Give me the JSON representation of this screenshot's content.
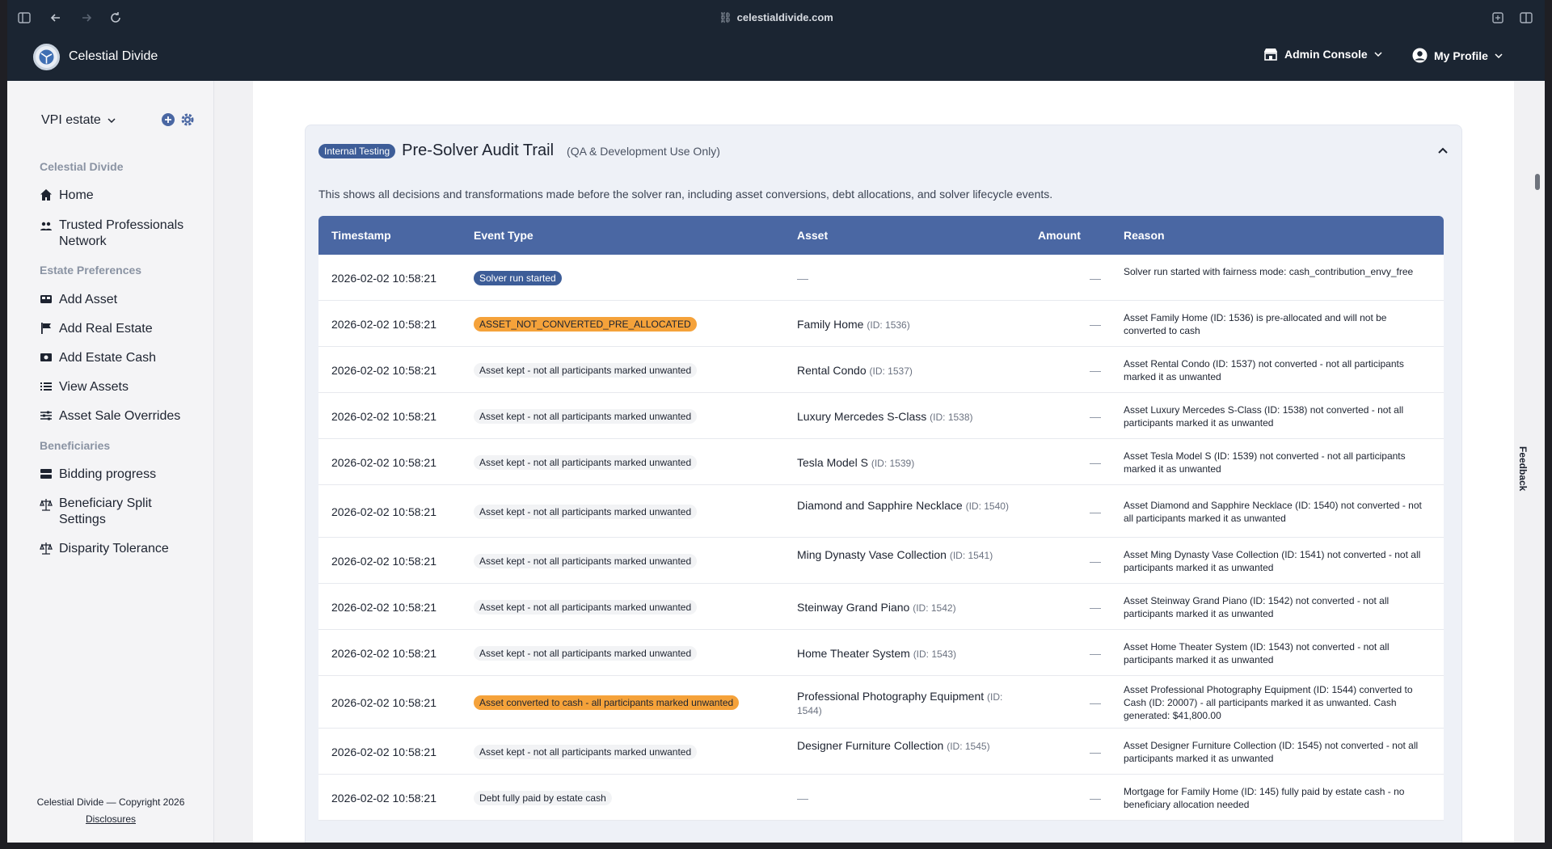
{
  "browser": {
    "url": "celestialdivide.com"
  },
  "header": {
    "brand": "Celestial Divide",
    "admin_console": "Admin Console",
    "my_profile": "My Profile"
  },
  "sidebar": {
    "estate": "VPI estate",
    "sections": [
      {
        "label": "Celestial Divide"
      },
      {
        "label": "Estate Preferences"
      },
      {
        "label": "Beneficiaries"
      }
    ],
    "items": [
      {
        "label": "Home"
      },
      {
        "label": "Trusted Professionals Network"
      },
      {
        "label": "Add Asset"
      },
      {
        "label": "Add Real Estate"
      },
      {
        "label": "Add Estate Cash"
      },
      {
        "label": "View Assets"
      },
      {
        "label": "Asset Sale Overrides"
      },
      {
        "label": "Bidding progress"
      },
      {
        "label": "Beneficiary Split Settings"
      },
      {
        "label": "Disparity Tolerance"
      }
    ],
    "footer": "Celestial Divide — Copyright 2026",
    "disclosures": "Disclosures"
  },
  "audit": {
    "badge": "Internal Testing",
    "title": "Pre-Solver Audit Trail",
    "subtitle": "(QA & Development Use Only)",
    "description": "This shows all decisions and transformations made before the solver ran, including asset conversions, debt allocations, and solver lifecycle events.",
    "columns": [
      "Timestamp",
      "Event Type",
      "Asset",
      "Amount",
      "Reason"
    ],
    "rows": [
      {
        "timestamp": "2026-02-02 10:58:21",
        "event": "Solver run started",
        "event_style": "blue",
        "asset": "—",
        "asset_id": "",
        "amount": "—",
        "reason": "Solver run started with fairness mode: cash_contribution_envy_free"
      },
      {
        "timestamp": "2026-02-02 10:58:21",
        "event": "ASSET_NOT_CONVERTED_PRE_ALLOCATED",
        "event_style": "orange",
        "asset": "Family Home",
        "asset_id": "(ID: 1536)",
        "amount": "—",
        "reason": "Asset Family Home (ID: 1536) is pre-allocated and will not be converted to cash"
      },
      {
        "timestamp": "2026-02-02 10:58:21",
        "event": "Asset kept - not all participants marked unwanted",
        "event_style": "gray",
        "asset": "Rental Condo",
        "asset_id": "(ID: 1537)",
        "amount": "—",
        "reason": "Asset Rental Condo (ID: 1537) not converted - not all participants marked it as unwanted"
      },
      {
        "timestamp": "2026-02-02 10:58:21",
        "event": "Asset kept - not all participants marked unwanted",
        "event_style": "gray",
        "asset": "Luxury Mercedes S-Class",
        "asset_id": "(ID: 1538)",
        "amount": "—",
        "reason": "Asset Luxury Mercedes S-Class (ID: 1538) not converted - not all participants marked it as unwanted"
      },
      {
        "timestamp": "2026-02-02 10:58:21",
        "event": "Asset kept - not all participants marked unwanted",
        "event_style": "gray",
        "asset": "Tesla Model S",
        "asset_id": "(ID: 1539)",
        "amount": "—",
        "reason": "Asset Tesla Model S (ID: 1539) not converted - not all participants marked it as unwanted"
      },
      {
        "timestamp": "2026-02-02 10:58:21",
        "event": "Asset kept - not all participants marked unwanted",
        "event_style": "gray",
        "asset": "Diamond and Sapphire Necklace",
        "asset_id": "(ID: 1540)",
        "amount": "—",
        "reason": "Asset Diamond and Sapphire Necklace (ID: 1540) not converted - not all participants marked it as unwanted"
      },
      {
        "timestamp": "2026-02-02 10:58:21",
        "event": "Asset kept - not all participants marked unwanted",
        "event_style": "gray",
        "asset": "Ming Dynasty Vase Collection",
        "asset_id": "(ID: 1541)",
        "amount": "—",
        "reason": "Asset Ming Dynasty Vase Collection (ID: 1541) not converted - not all participants marked it as unwanted"
      },
      {
        "timestamp": "2026-02-02 10:58:21",
        "event": "Asset kept - not all participants marked unwanted",
        "event_style": "gray",
        "asset": "Steinway Grand Piano",
        "asset_id": "(ID: 1542)",
        "amount": "—",
        "reason": "Asset Steinway Grand Piano (ID: 1542) not converted - not all participants marked it as unwanted"
      },
      {
        "timestamp": "2026-02-02 10:58:21",
        "event": "Asset kept - not all participants marked unwanted",
        "event_style": "gray",
        "asset": "Home Theater System",
        "asset_id": "(ID: 1543)",
        "amount": "—",
        "reason": "Asset Home Theater System (ID: 1543) not converted - not all participants marked it as unwanted"
      },
      {
        "timestamp": "2026-02-02 10:58:21",
        "event": "Asset converted to cash - all participants marked unwanted",
        "event_style": "orange",
        "asset": "Professional Photography Equipment",
        "asset_id": "(ID: 1544)",
        "amount": "—",
        "reason": "Asset Professional Photography Equipment (ID: 1544) converted to Cash (ID: 20007) - all participants marked it as unwanted. Cash generated: $41,800.00"
      },
      {
        "timestamp": "2026-02-02 10:58:21",
        "event": "Asset kept - not all participants marked unwanted",
        "event_style": "gray",
        "asset": "Designer Furniture Collection",
        "asset_id": "(ID: 1545)",
        "amount": "—",
        "reason": "Asset Designer Furniture Collection (ID: 1545) not converted - not all participants marked it as unwanted"
      },
      {
        "timestamp": "2026-02-02 10:58:21",
        "event": "Debt fully paid by estate cash",
        "event_style": "gray",
        "asset": "—",
        "asset_id": "",
        "amount": "—",
        "reason": "Mortgage for Family Home (ID: 145) fully paid by estate cash - no beneficiary allocation needed"
      }
    ]
  },
  "feedback": "Feedback"
}
